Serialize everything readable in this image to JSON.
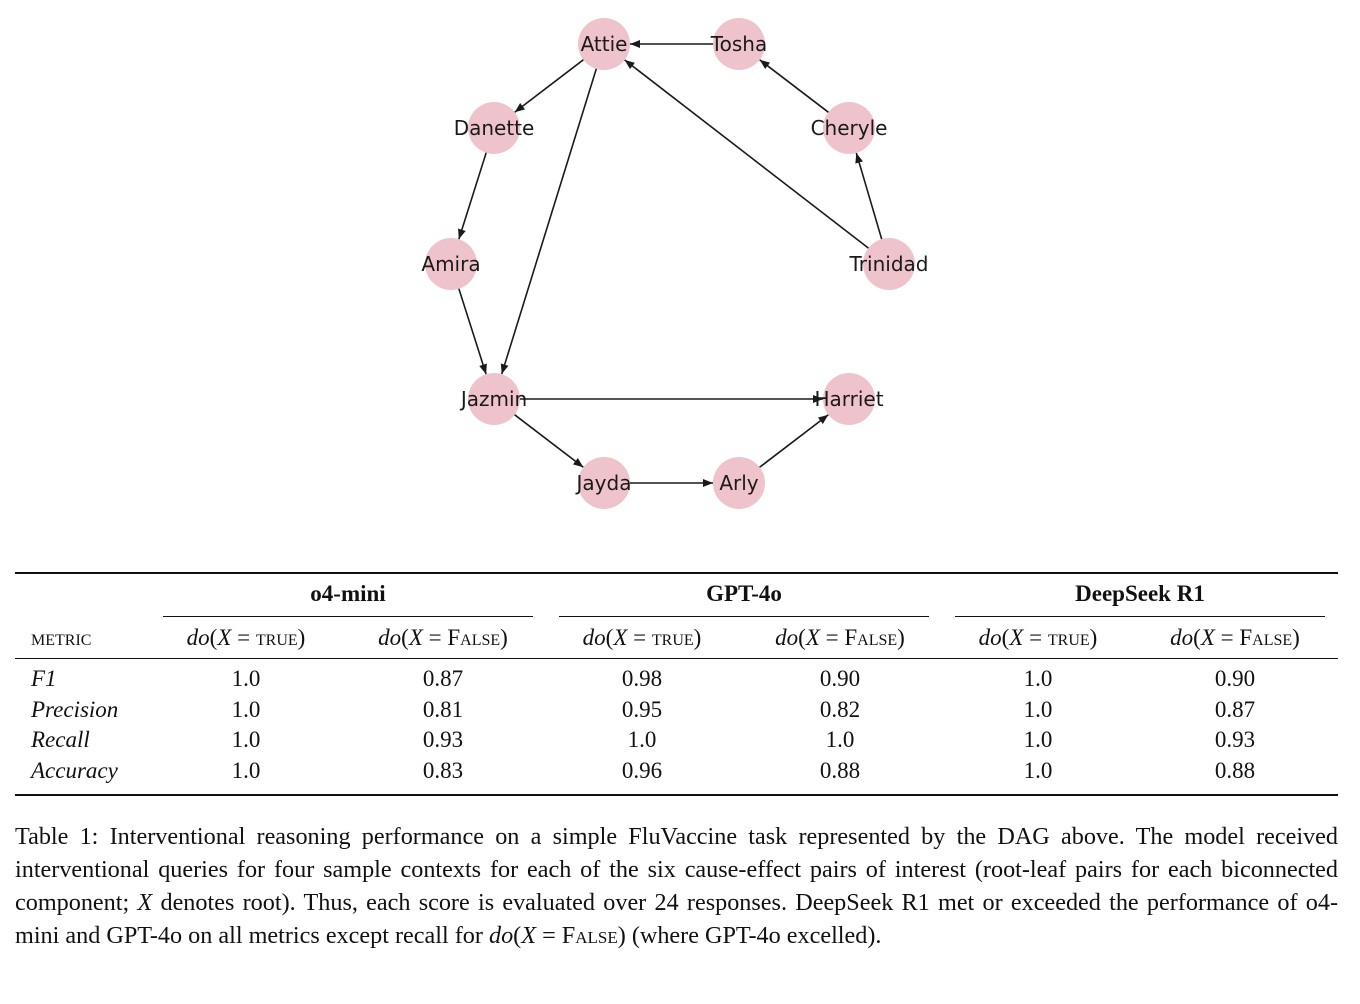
{
  "graph": {
    "nodes": [
      "Attie",
      "Tosha",
      "Cheryle",
      "Trinidad",
      "Harriet",
      "Arly",
      "Jayda",
      "Jazmin",
      "Amira",
      "Danette"
    ],
    "edges": [
      [
        "Tosha",
        "Attie"
      ],
      [
        "Attie",
        "Danette"
      ],
      [
        "Attie",
        "Jazmin"
      ],
      [
        "Danette",
        "Amira"
      ],
      [
        "Amira",
        "Jazmin"
      ],
      [
        "Jazmin",
        "Harriet"
      ],
      [
        "Jazmin",
        "Jayda"
      ],
      [
        "Jayda",
        "Arly"
      ],
      [
        "Arly",
        "Harriet"
      ],
      [
        "Trinidad",
        "Cheryle"
      ],
      [
        "Cheryle",
        "Tosha"
      ],
      [
        "Trinidad",
        "Attie"
      ]
    ],
    "node_color": "#efc3cb",
    "edge_color": "#1a1a1a"
  },
  "table": {
    "metric_header": "metric",
    "groups": [
      "o4-mini",
      "GPT-4o",
      "DeepSeek R1"
    ],
    "do_prefix": "do",
    "var": "X",
    "eq": " = ",
    "true_label": "true",
    "false_label": "False",
    "rows": [
      {
        "label": "F1",
        "values": [
          "1.0",
          "0.87",
          "0.98",
          "0.90",
          "1.0",
          "0.90"
        ]
      },
      {
        "label": "Precision",
        "values": [
          "1.0",
          "0.81",
          "0.95",
          "0.82",
          "1.0",
          "0.87"
        ]
      },
      {
        "label": "Recall",
        "values": [
          "1.0",
          "0.93",
          "1.0",
          "1.0",
          "1.0",
          "0.93"
        ]
      },
      {
        "label": "Accuracy",
        "values": [
          "1.0",
          "0.83",
          "0.96",
          "0.88",
          "1.0",
          "0.88"
        ]
      }
    ]
  },
  "caption": {
    "part1": "Table 1:  Interventional reasoning performance on a simple FluVaccine task represented by the DAG above. The model received interventional queries for four sample contexts for each of the six cause-effect pairs of interest (root-leaf pairs for each biconnected component; ",
    "var": "X",
    "part2": " denotes root). Thus, each score is evaluated over 24 responses. DeepSeek R1 met or exceeded the performance of o4-mini and GPT-4o on all metrics except recall for ",
    "do": "do",
    "open": "(",
    "eq": " = ",
    "false_label": "False",
    "part3": ") (where GPT-4o excelled)."
  }
}
